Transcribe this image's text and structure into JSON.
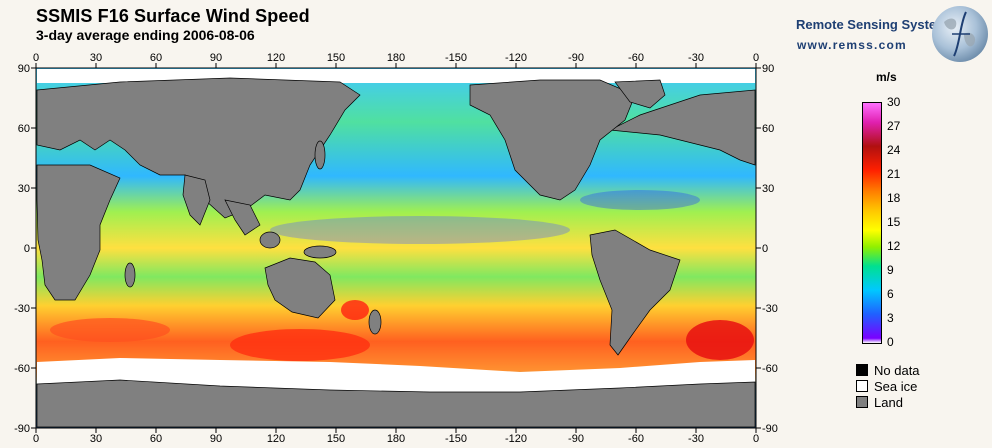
{
  "header": {
    "title": "SSMIS F16 Surface Wind Speed",
    "subtitle": "3-day average ending 2006-08-06"
  },
  "brand": {
    "name": "Remote Sensing Systems",
    "url": "www.remss.com"
  },
  "map": {
    "lon_labels": [
      "0",
      "30",
      "60",
      "90",
      "120",
      "150",
      "180",
      "-150",
      "-120",
      "-90",
      "-60",
      "-30",
      "0"
    ],
    "lat_labels": [
      "90",
      "60",
      "30",
      "0",
      "-30",
      "-60",
      "-90"
    ],
    "colors": {
      "land": "#808080",
      "sea_ice": "#ffffff",
      "no_data": "#000000",
      "frame": "#000000"
    }
  },
  "colorbar": {
    "unit": "m/s",
    "labels": [
      "30",
      "27",
      "24",
      "21",
      "18",
      "15",
      "12",
      "9",
      "6",
      "3",
      "0"
    ]
  },
  "legend": {
    "items": [
      {
        "label": "No data",
        "color": "#000000"
      },
      {
        "label": "Sea ice",
        "color": "#ffffff"
      },
      {
        "label": "Land",
        "color": "#808080"
      }
    ]
  }
}
